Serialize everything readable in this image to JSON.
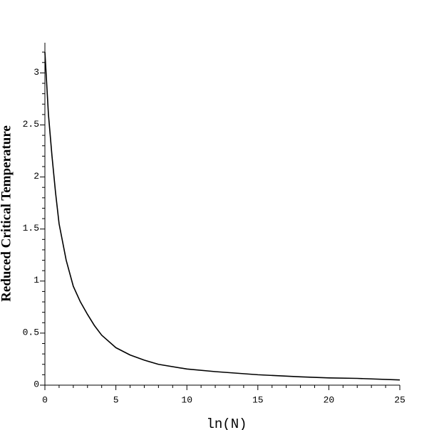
{
  "chart_data": {
    "type": "line",
    "x_label": "ln(N)",
    "y_label": "Reduced Critical Temperature",
    "x": [
      0,
      0.25,
      0.5,
      0.75,
      1,
      1.5,
      2,
      2.5,
      3,
      3.5,
      4,
      5,
      6,
      7,
      8,
      10,
      12,
      15,
      18,
      20,
      22,
      25
    ],
    "values": [
      3.2,
      2.6,
      2.2,
      1.85,
      1.55,
      1.2,
      0.95,
      0.8,
      0.68,
      0.57,
      0.48,
      0.36,
      0.29,
      0.24,
      0.2,
      0.155,
      0.13,
      0.1,
      0.08,
      0.07,
      0.065,
      0.05
    ],
    "color": "#000000",
    "xlim": [
      0,
      25
    ],
    "ylim": [
      0,
      3.29
    ],
    "xticks": [
      0,
      5,
      10,
      15,
      20,
      25
    ],
    "yticks": [
      0,
      0.5,
      1,
      1.5,
      2,
      2.5,
      3
    ],
    "grid": false
  }
}
